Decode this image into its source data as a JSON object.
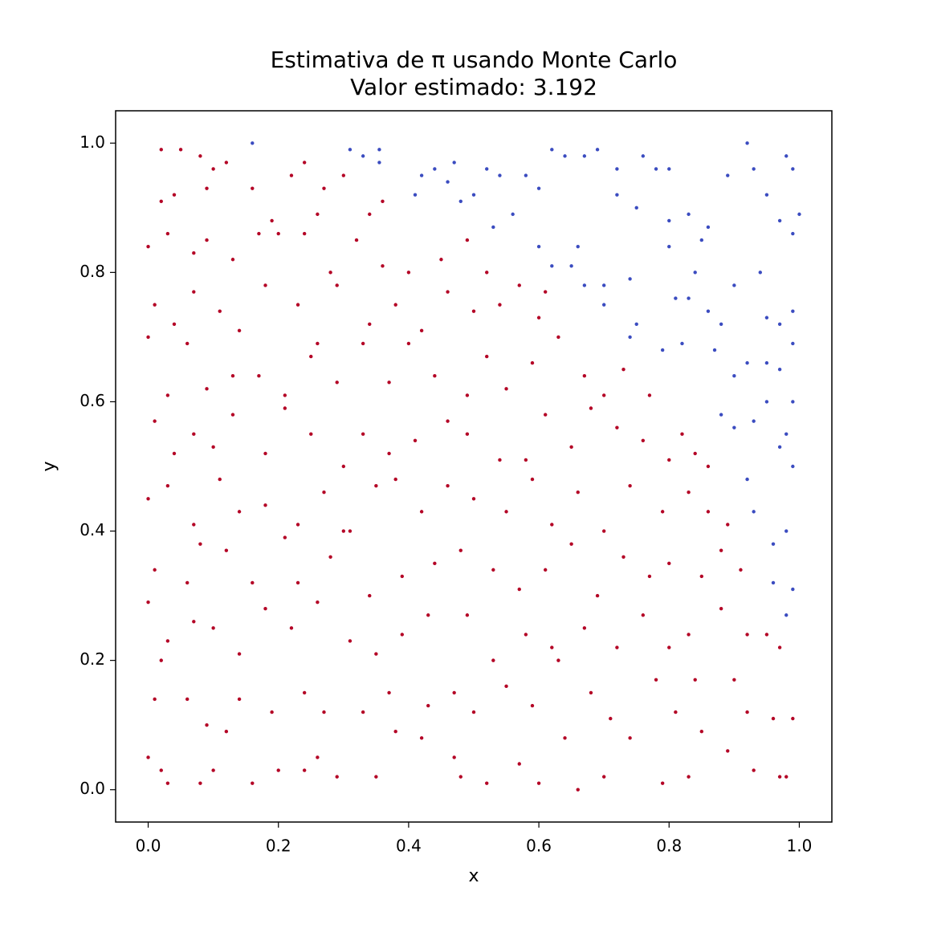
{
  "chart_data": {
    "type": "scatter",
    "title": "Estimativa de π usando Monte Carlo",
    "subtitle": "Valor estimado: 3.192",
    "xlabel": "x",
    "ylabel": "y",
    "xlim": [
      -0.05,
      1.05
    ],
    "ylim": [
      -0.05,
      1.05
    ],
    "xticks": [
      {
        "value": 0,
        "label": "0.0"
      },
      0.2,
      0.4,
      0.6,
      0.8,
      {
        "value": 1,
        "label": "1.0"
      }
    ],
    "yticks": [
      {
        "value": 0,
        "label": "0.0"
      },
      0.2,
      0.4,
      0.6,
      0.8,
      {
        "value": 1,
        "label": "1.0"
      }
    ],
    "series": [
      {
        "color": "#b40426",
        "x": [
          0.0,
          0.02,
          0.03,
          0.08,
          0.1,
          0.12,
          0.16,
          0.2,
          0.24,
          0.26,
          0.29,
          0.35,
          0.38,
          0.42,
          0.47,
          0.48,
          0.52,
          0.57,
          0.6,
          0.64,
          0.66,
          0.7,
          0.74,
          0.79,
          0.83,
          0.85,
          0.89,
          0.93,
          0.97,
          0.98,
          0.01,
          0.02,
          0.06,
          0.09,
          0.14,
          0.19,
          0.24,
          0.27,
          0.33,
          0.37,
          0.43,
          0.47,
          0.5,
          0.55,
          0.59,
          0.63,
          0.68,
          0.71,
          0.78,
          0.81,
          0.84,
          0.9,
          0.92,
          0.96,
          0.99,
          0.0,
          0.03,
          0.07,
          0.1,
          0.14,
          0.18,
          0.22,
          0.26,
          0.31,
          0.35,
          0.39,
          0.43,
          0.49,
          0.53,
          0.58,
          0.62,
          0.67,
          0.72,
          0.76,
          0.8,
          0.83,
          0.88,
          0.92,
          0.95,
          0.97,
          0.01,
          0.06,
          0.08,
          0.12,
          0.16,
          0.21,
          0.23,
          0.28,
          0.31,
          0.34,
          0.39,
          0.44,
          0.48,
          0.53,
          0.57,
          0.61,
          0.65,
          0.69,
          0.73,
          0.77,
          0.8,
          0.85,
          0.88,
          0.91,
          0.0,
          0.03,
          0.07,
          0.11,
          0.14,
          0.18,
          0.23,
          0.27,
          0.3,
          0.35,
          0.38,
          0.42,
          0.46,
          0.5,
          0.55,
          0.59,
          0.62,
          0.66,
          0.7,
          0.74,
          0.79,
          0.83,
          0.86,
          0.89,
          0.86,
          0.01,
          0.04,
          0.07,
          0.1,
          0.13,
          0.18,
          0.21,
          0.25,
          0.3,
          0.33,
          0.37,
          0.41,
          0.46,
          0.49,
          0.54,
          0.58,
          0.61,
          0.65,
          0.68,
          0.72,
          0.76,
          0.8,
          0.82,
          0.84,
          0.0,
          0.03,
          0.06,
          0.09,
          0.13,
          0.17,
          0.21,
          0.25,
          0.29,
          0.33,
          0.37,
          0.4,
          0.44,
          0.49,
          0.52,
          0.55,
          0.59,
          0.63,
          0.67,
          0.7,
          0.73,
          0.77,
          0.01,
          0.04,
          0.07,
          0.11,
          0.14,
          0.18,
          0.23,
          0.26,
          0.29,
          0.34,
          0.38,
          0.42,
          0.46,
          0.5,
          0.54,
          0.57,
          0.6,
          0.61,
          0.0,
          0.03,
          0.07,
          0.09,
          0.13,
          0.17,
          0.2,
          0.24,
          0.28,
          0.32,
          0.36,
          0.4,
          0.45,
          0.49,
          0.52,
          0.02,
          0.05,
          0.08,
          0.1,
          0.12,
          0.02,
          0.04,
          0.09,
          0.16,
          0.22,
          0.24,
          0.27,
          0.3,
          0.34,
          0.36,
          0.26,
          0.19
        ],
        "values": [
          0.05,
          0.03,
          0.01,
          0.01,
          0.03,
          0.09,
          0.01,
          0.03,
          0.03,
          0.05,
          0.02,
          0.02,
          0.09,
          0.08,
          0.05,
          0.02,
          0.01,
          0.04,
          0.01,
          0.08,
          0.0,
          0.02,
          0.08,
          0.01,
          0.02,
          0.09,
          0.06,
          0.03,
          0.02,
          0.02,
          0.14,
          0.2,
          0.14,
          0.1,
          0.14,
          0.12,
          0.15,
          0.12,
          0.12,
          0.15,
          0.13,
          0.15,
          0.12,
          0.16,
          0.13,
          0.2,
          0.15,
          0.11,
          0.17,
          0.12,
          0.17,
          0.17,
          0.12,
          0.11,
          0.11,
          0.29,
          0.23,
          0.26,
          0.25,
          0.21,
          0.28,
          0.25,
          0.29,
          0.23,
          0.21,
          0.24,
          0.27,
          0.27,
          0.2,
          0.24,
          0.22,
          0.25,
          0.22,
          0.27,
          0.22,
          0.24,
          0.28,
          0.24,
          0.24,
          0.22,
          0.34,
          0.32,
          0.38,
          0.37,
          0.32,
          0.39,
          0.32,
          0.36,
          0.4,
          0.3,
          0.33,
          0.35,
          0.37,
          0.34,
          0.31,
          0.34,
          0.38,
          0.3,
          0.36,
          0.33,
          0.35,
          0.33,
          0.37,
          0.34,
          0.45,
          0.47,
          0.41,
          0.48,
          0.43,
          0.44,
          0.41,
          0.46,
          0.4,
          0.47,
          0.48,
          0.43,
          0.47,
          0.45,
          0.43,
          0.48,
          0.41,
          0.46,
          0.4,
          0.47,
          0.43,
          0.46,
          0.43,
          0.41,
          0.5,
          0.57,
          0.52,
          0.55,
          0.53,
          0.58,
          0.52,
          0.59,
          0.55,
          0.5,
          0.55,
          0.52,
          0.54,
          0.57,
          0.55,
          0.51,
          0.51,
          0.58,
          0.53,
          0.59,
          0.56,
          0.54,
          0.51,
          0.55,
          0.52,
          0.7,
          0.61,
          0.69,
          0.62,
          0.64,
          0.64,
          0.61,
          0.67,
          0.63,
          0.69,
          0.63,
          0.69,
          0.64,
          0.61,
          0.67,
          0.62,
          0.66,
          0.7,
          0.64,
          0.61,
          0.65,
          0.61,
          0.75,
          0.72,
          0.77,
          0.74,
          0.71,
          0.78,
          0.75,
          0.69,
          0.78,
          0.72,
          0.75,
          0.71,
          0.77,
          0.74,
          0.75,
          0.78,
          0.73,
          0.77,
          0.84,
          0.86,
          0.83,
          0.85,
          0.82,
          0.86,
          0.86,
          0.86,
          0.8,
          0.85,
          0.81,
          0.8,
          0.82,
          0.85,
          0.8,
          0.99,
          0.99,
          0.98,
          0.96,
          0.97,
          0.91,
          0.92,
          0.93,
          0.93,
          0.95,
          0.97,
          0.93,
          0.95,
          0.89,
          0.91,
          0.89,
          0.88
        ]
      },
      {
        "color": "#3b4cc0",
        "x": [
          0.16,
          0.31,
          0.33,
          0.355,
          0.355,
          0.42,
          0.44,
          0.47,
          0.46,
          0.5,
          0.52,
          0.54,
          0.58,
          0.6,
          0.62,
          0.64,
          0.67,
          0.69,
          0.72,
          0.76,
          0.78,
          0.8,
          0.72,
          0.75,
          0.8,
          0.83,
          0.85,
          0.86,
          0.89,
          0.92,
          0.93,
          0.95,
          0.98,
          0.99,
          1.0,
          0.99,
          0.97,
          0.9,
          0.88,
          0.87,
          0.9,
          0.92,
          0.95,
          0.97,
          0.99,
          0.97,
          0.99,
          0.88,
          0.9,
          0.93,
          0.95,
          0.99,
          0.98,
          0.97,
          0.99,
          0.92,
          0.93,
          0.96,
          0.98,
          0.99,
          0.98,
          0.96,
          0.7,
          0.67,
          0.7,
          0.74,
          0.75,
          0.8,
          0.81,
          0.83,
          0.84,
          0.74,
          0.79,
          0.82,
          0.86,
          0.62,
          0.65,
          0.56,
          0.53,
          0.6,
          0.48,
          0.41,
          0.66,
          0.94,
          0.95
        ],
        "values": [
          1.0,
          0.99,
          0.98,
          0.99,
          0.97,
          0.95,
          0.96,
          0.97,
          0.94,
          0.92,
          0.96,
          0.95,
          0.95,
          0.93,
          0.99,
          0.98,
          0.98,
          0.99,
          0.96,
          0.98,
          0.96,
          0.96,
          0.92,
          0.9,
          0.88,
          0.89,
          0.85,
          0.87,
          0.95,
          1.0,
          0.96,
          0.92,
          0.98,
          0.96,
          0.89,
          0.86,
          0.88,
          0.78,
          0.72,
          0.68,
          0.64,
          0.66,
          0.66,
          0.65,
          0.74,
          0.72,
          0.69,
          0.58,
          0.56,
          0.57,
          0.6,
          0.6,
          0.55,
          0.53,
          0.5,
          0.48,
          0.43,
          0.38,
          0.4,
          0.31,
          0.27,
          0.32,
          0.78,
          0.78,
          0.75,
          0.79,
          0.72,
          0.84,
          0.76,
          0.76,
          0.8,
          0.7,
          0.68,
          0.69,
          0.74,
          0.81,
          0.81,
          0.89,
          0.87,
          0.84,
          0.91,
          0.92,
          0.84,
          0.8,
          0.73
        ]
      }
    ]
  }
}
